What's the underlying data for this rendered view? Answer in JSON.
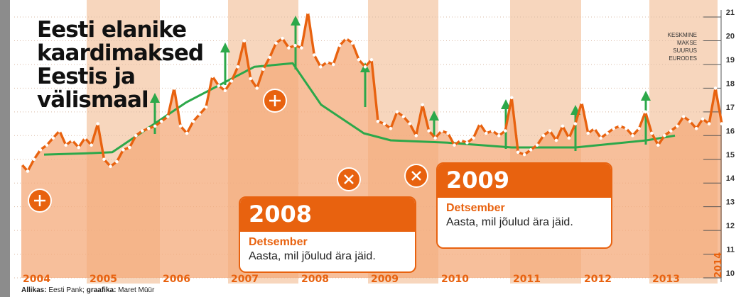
{
  "title_lines": [
    "Eesti elanike",
    "kaardimaksed",
    "Eestis ja",
    "välismaal"
  ],
  "unit_lines": [
    "KESKMINE",
    "MAKSE",
    "SUURUS",
    "EURODES"
  ],
  "callouts": [
    {
      "year": "2008",
      "month": "Detsember",
      "text": "Aasta, mil jõulud ära jäid."
    },
    {
      "year": "2009",
      "month": "Detsember",
      "text": "Aasta, mil jõulud ära jäid."
    }
  ],
  "source": {
    "label1": "Allikas:",
    "text1": " Eesti Pank; ",
    "label2": "graafika:",
    "text2": " Maret Müür"
  },
  "colors": {
    "orange": "#e8620f",
    "green": "#2ca84a",
    "band": "#f7d6bd",
    "area": "#f4a97a"
  },
  "chart_data": {
    "type": "line",
    "x_axis": {
      "labels": [
        "2004",
        "2005",
        "2006",
        "2007",
        "2008",
        "2009",
        "2010",
        "2011",
        "2012",
        "2013",
        "2014"
      ]
    },
    "y_axis": {
      "ticks": [
        10,
        11,
        12,
        13,
        14,
        15,
        16,
        17,
        18,
        19,
        20,
        21
      ],
      "range": [
        10,
        21.3
      ]
    },
    "series": [
      {
        "values": [
          14.8,
          14.5,
          15.0,
          15.4,
          15.6,
          15.9,
          16.2,
          15.6,
          15.8,
          15.5,
          15.9,
          15.6,
          16.5,
          15.0,
          14.7,
          14.9,
          15.4,
          15.5,
          16.0,
          16.2,
          16.3,
          16.4,
          16.6,
          16.8,
          18.0,
          16.4,
          16.1,
          16.6,
          16.9,
          17.2,
          18.5,
          18.1,
          17.9,
          18.3,
          18.9,
          20.0,
          18.4,
          18.0,
          18.8,
          19.3,
          19.9,
          20.1,
          19.7,
          19.8,
          19.7,
          21.2,
          19.4,
          18.9,
          19.1,
          19.0,
          19.8,
          20.1,
          19.9,
          19.2,
          18.9,
          19.2,
          16.6,
          16.5,
          16.3,
          17.0,
          16.8,
          16.5,
          16.0,
          17.3,
          16.2,
          15.9,
          16.2,
          16.1,
          15.6,
          15.8,
          15.7,
          15.9,
          16.5,
          16.1,
          16.2,
          16.0,
          16.2,
          17.6,
          15.3,
          15.2,
          15.4,
          15.6,
          16.0,
          16.2,
          15.8,
          16.4,
          15.9,
          16.5,
          17.4,
          16.1,
          16.3,
          15.9,
          16.1,
          16.3,
          16.4,
          16.3,
          16.0,
          16.3,
          17.0,
          16.1,
          15.6,
          16.0,
          16.2,
          16.4,
          16.8,
          16.6,
          16.3,
          16.7,
          16.5,
          18.0,
          16.5
        ]
      },
      {
        "values": [
          15.2,
          15.25,
          15.3,
          17.4,
          18.9,
          19.05,
          17.3,
          16.1,
          15.8,
          15.7,
          15.5,
          15.5,
          15.8,
          16.0
        ]
      }
    ],
    "december_spikes": [
      "2005",
      "2006",
      "2007",
      "2008",
      "2009",
      "2010",
      "2011",
      "2012"
    ]
  }
}
